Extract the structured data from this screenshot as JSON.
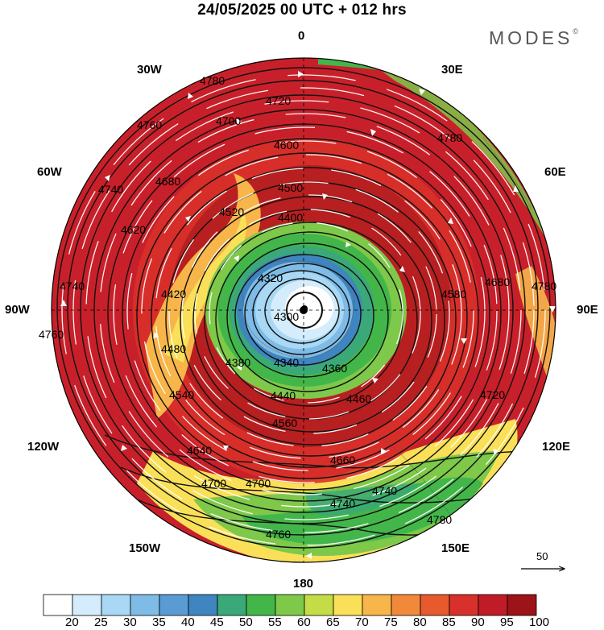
{
  "title": "24/05/2025  00 UTC  + 012 hrs",
  "brand": "MODES",
  "brand_mark": "©",
  "longitude_labels": {
    "lon_0": "0",
    "lon_30E": "30E",
    "lon_60E": "60E",
    "lon_90E": "90E",
    "lon_120E": "120E",
    "lon_150E": "150E",
    "lon_180": "180",
    "lon_150W": "150W",
    "lon_120W": "120W",
    "lon_90W": "90W",
    "lon_60W": "60W",
    "lon_30W": "30W"
  },
  "vector_reference": "50",
  "colorbar": {
    "labels": [
      "20",
      "25",
      "30",
      "35",
      "40",
      "45",
      "50",
      "55",
      "60",
      "65",
      "70",
      "75",
      "80",
      "85",
      "90",
      "95",
      "100"
    ],
    "colors": [
      "#ffffff",
      "#d4ecfb",
      "#a8d8f4",
      "#7ebbe6",
      "#5a9bd4",
      "#3f85c0",
      "#3aa878",
      "#43b64a",
      "#7ec84a",
      "#c4dc45",
      "#fae058",
      "#f7b54a",
      "#f08a3a",
      "#e65a2e",
      "#d8302a",
      "#c01c28",
      "#9c1418"
    ]
  },
  "contour_labels": [
    "4780",
    "4720",
    "4700",
    "4760",
    "4740",
    "4680",
    "4660",
    "4640",
    "4620",
    "4600",
    "4580",
    "4560",
    "4540",
    "4520",
    "4500",
    "4480",
    "4460",
    "4440",
    "4420",
    "4400",
    "4380",
    "4360",
    "4340",
    "4320",
    "4300"
  ],
  "colors": {
    "background": "#ffffff",
    "contour": "#111111",
    "wind_arrow": "#ffffff"
  }
}
